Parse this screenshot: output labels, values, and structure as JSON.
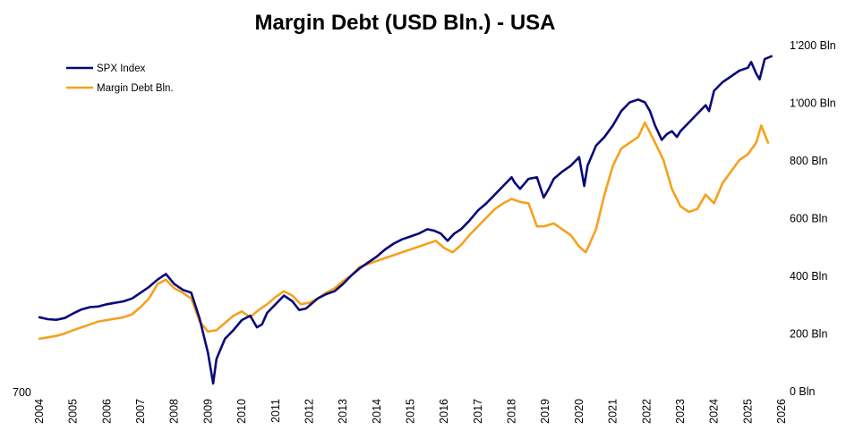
{
  "chart_data": {
    "type": "line",
    "title": "Margin Debt (USD Bln.) - USA",
    "xlabel": "",
    "xlim": [
      2004,
      2026
    ],
    "x_ticks": [
      "2004",
      "2005",
      "2006",
      "2007",
      "2008",
      "2009",
      "2010",
      "2011",
      "2012",
      "2013",
      "2014",
      "2015",
      "2016",
      "2017",
      "2018",
      "2019",
      "2020",
      "2021",
      "2022",
      "2023",
      "2024",
      "2025",
      "2026"
    ],
    "y_left_ticks": [
      "700"
    ],
    "y_right_ticks": [
      "0 Bln",
      "200 Bln",
      "400 Bln",
      "600 Bln",
      "800 Bln",
      "1'000 Bln",
      "1'200 Bln"
    ],
    "ylim_right": [
      0,
      1200
    ],
    "legend_position": "top-left",
    "colors": {
      "spx": "#0a0a78",
      "margin": "#f5a11e"
    },
    "series": [
      {
        "name": "SPX Index",
        "axis": "left",
        "x": [
          2004.0,
          2004.25,
          2004.5,
          2004.75,
          2005.0,
          2005.25,
          2005.5,
          2005.75,
          2006.0,
          2006.25,
          2006.5,
          2006.75,
          2007.0,
          2007.25,
          2007.5,
          2007.75,
          2008.0,
          2008.25,
          2008.5,
          2008.75,
          2009.0,
          2009.15,
          2009.25,
          2009.5,
          2009.75,
          2010.0,
          2010.25,
          2010.45,
          2010.6,
          2010.75,
          2011.0,
          2011.25,
          2011.5,
          2011.7,
          2011.9,
          2012.0,
          2012.25,
          2012.5,
          2012.75,
          2013.0,
          2013.25,
          2013.5,
          2013.75,
          2014.0,
          2014.25,
          2014.5,
          2014.75,
          2015.0,
          2015.25,
          2015.5,
          2015.7,
          2015.9,
          2016.1,
          2016.3,
          2016.5,
          2016.75,
          2017.0,
          2017.25,
          2017.5,
          2017.75,
          2018.0,
          2018.1,
          2018.25,
          2018.5,
          2018.75,
          2018.95,
          2019.1,
          2019.25,
          2019.5,
          2019.75,
          2020.0,
          2020.15,
          2020.25,
          2020.5,
          2020.75,
          2021.0,
          2021.25,
          2021.5,
          2021.75,
          2021.95,
          2022.1,
          2022.25,
          2022.45,
          2022.6,
          2022.75,
          2022.9,
          2023.0,
          2023.25,
          2023.5,
          2023.75,
          2023.85,
          2024.0,
          2024.25,
          2024.5,
          2024.75,
          2025.0,
          2025.1,
          2025.25,
          2025.35,
          2025.5,
          2025.7
        ],
        "y": [
          255,
          248,
          246,
          252,
          268,
          282,
          290,
          292,
          300,
          305,
          310,
          320,
          340,
          360,
          385,
          405,
          370,
          350,
          340,
          250,
          130,
          25,
          110,
          180,
          210,
          245,
          260,
          220,
          230,
          270,
          300,
          330,
          310,
          280,
          285,
          295,
          320,
          335,
          345,
          370,
          400,
          425,
          445,
          465,
          490,
          510,
          525,
          535,
          545,
          560,
          555,
          545,
          520,
          545,
          560,
          590,
          625,
          650,
          680,
          710,
          740,
          720,
          700,
          735,
          740,
          670,
          700,
          735,
          760,
          780,
          810,
          710,
          780,
          850,
          880,
          920,
          970,
          1000,
          1010,
          1000,
          970,
          920,
          870,
          890,
          900,
          880,
          900,
          930,
          960,
          990,
          970,
          1040,
          1070,
          1090,
          1110,
          1120,
          1140,
          1100,
          1080,
          1150,
          1160
        ]
      },
      {
        "name": "Margin Debt Bln.",
        "axis": "right",
        "x": [
          2004.0,
          2004.25,
          2004.5,
          2004.75,
          2005.0,
          2005.25,
          2005.5,
          2005.75,
          2006.0,
          2006.25,
          2006.5,
          2006.75,
          2007.0,
          2007.25,
          2007.5,
          2007.75,
          2008.0,
          2008.25,
          2008.5,
          2008.75,
          2009.0,
          2009.25,
          2009.5,
          2009.75,
          2010.0,
          2010.25,
          2010.5,
          2010.75,
          2011.0,
          2011.25,
          2011.5,
          2011.75,
          2012.0,
          2012.25,
          2012.5,
          2012.75,
          2013.0,
          2013.25,
          2013.5,
          2013.75,
          2014.0,
          2014.25,
          2014.5,
          2014.75,
          2015.0,
          2015.25,
          2015.5,
          2015.75,
          2016.0,
          2016.25,
          2016.5,
          2016.75,
          2017.0,
          2017.25,
          2017.5,
          2017.75,
          2018.0,
          2018.25,
          2018.5,
          2018.75,
          2018.95,
          2019.25,
          2019.5,
          2019.75,
          2020.0,
          2020.2,
          2020.5,
          2020.75,
          2021.0,
          2021.25,
          2021.5,
          2021.75,
          2021.95,
          2022.25,
          2022.5,
          2022.75,
          2023.0,
          2023.25,
          2023.5,
          2023.75,
          2024.0,
          2024.25,
          2024.5,
          2024.75,
          2025.0,
          2025.25,
          2025.4,
          2025.6
        ],
        "y": [
          180,
          185,
          190,
          198,
          210,
          220,
          230,
          240,
          245,
          250,
          255,
          265,
          290,
          320,
          370,
          385,
          355,
          340,
          320,
          240,
          205,
          210,
          235,
          260,
          275,
          255,
          280,
          300,
          325,
          345,
          330,
          300,
          305,
          320,
          340,
          355,
          380,
          400,
          430,
          440,
          450,
          460,
          470,
          480,
          490,
          500,
          510,
          520,
          495,
          480,
          505,
          540,
          570,
          600,
          630,
          650,
          665,
          655,
          650,
          570,
          570,
          580,
          560,
          540,
          500,
          480,
          560,
          680,
          780,
          840,
          860,
          880,
          930,
          860,
          800,
          700,
          640,
          620,
          630,
          680,
          650,
          720,
          760,
          800,
          820,
          860,
          920,
          860
        ]
      }
    ]
  }
}
